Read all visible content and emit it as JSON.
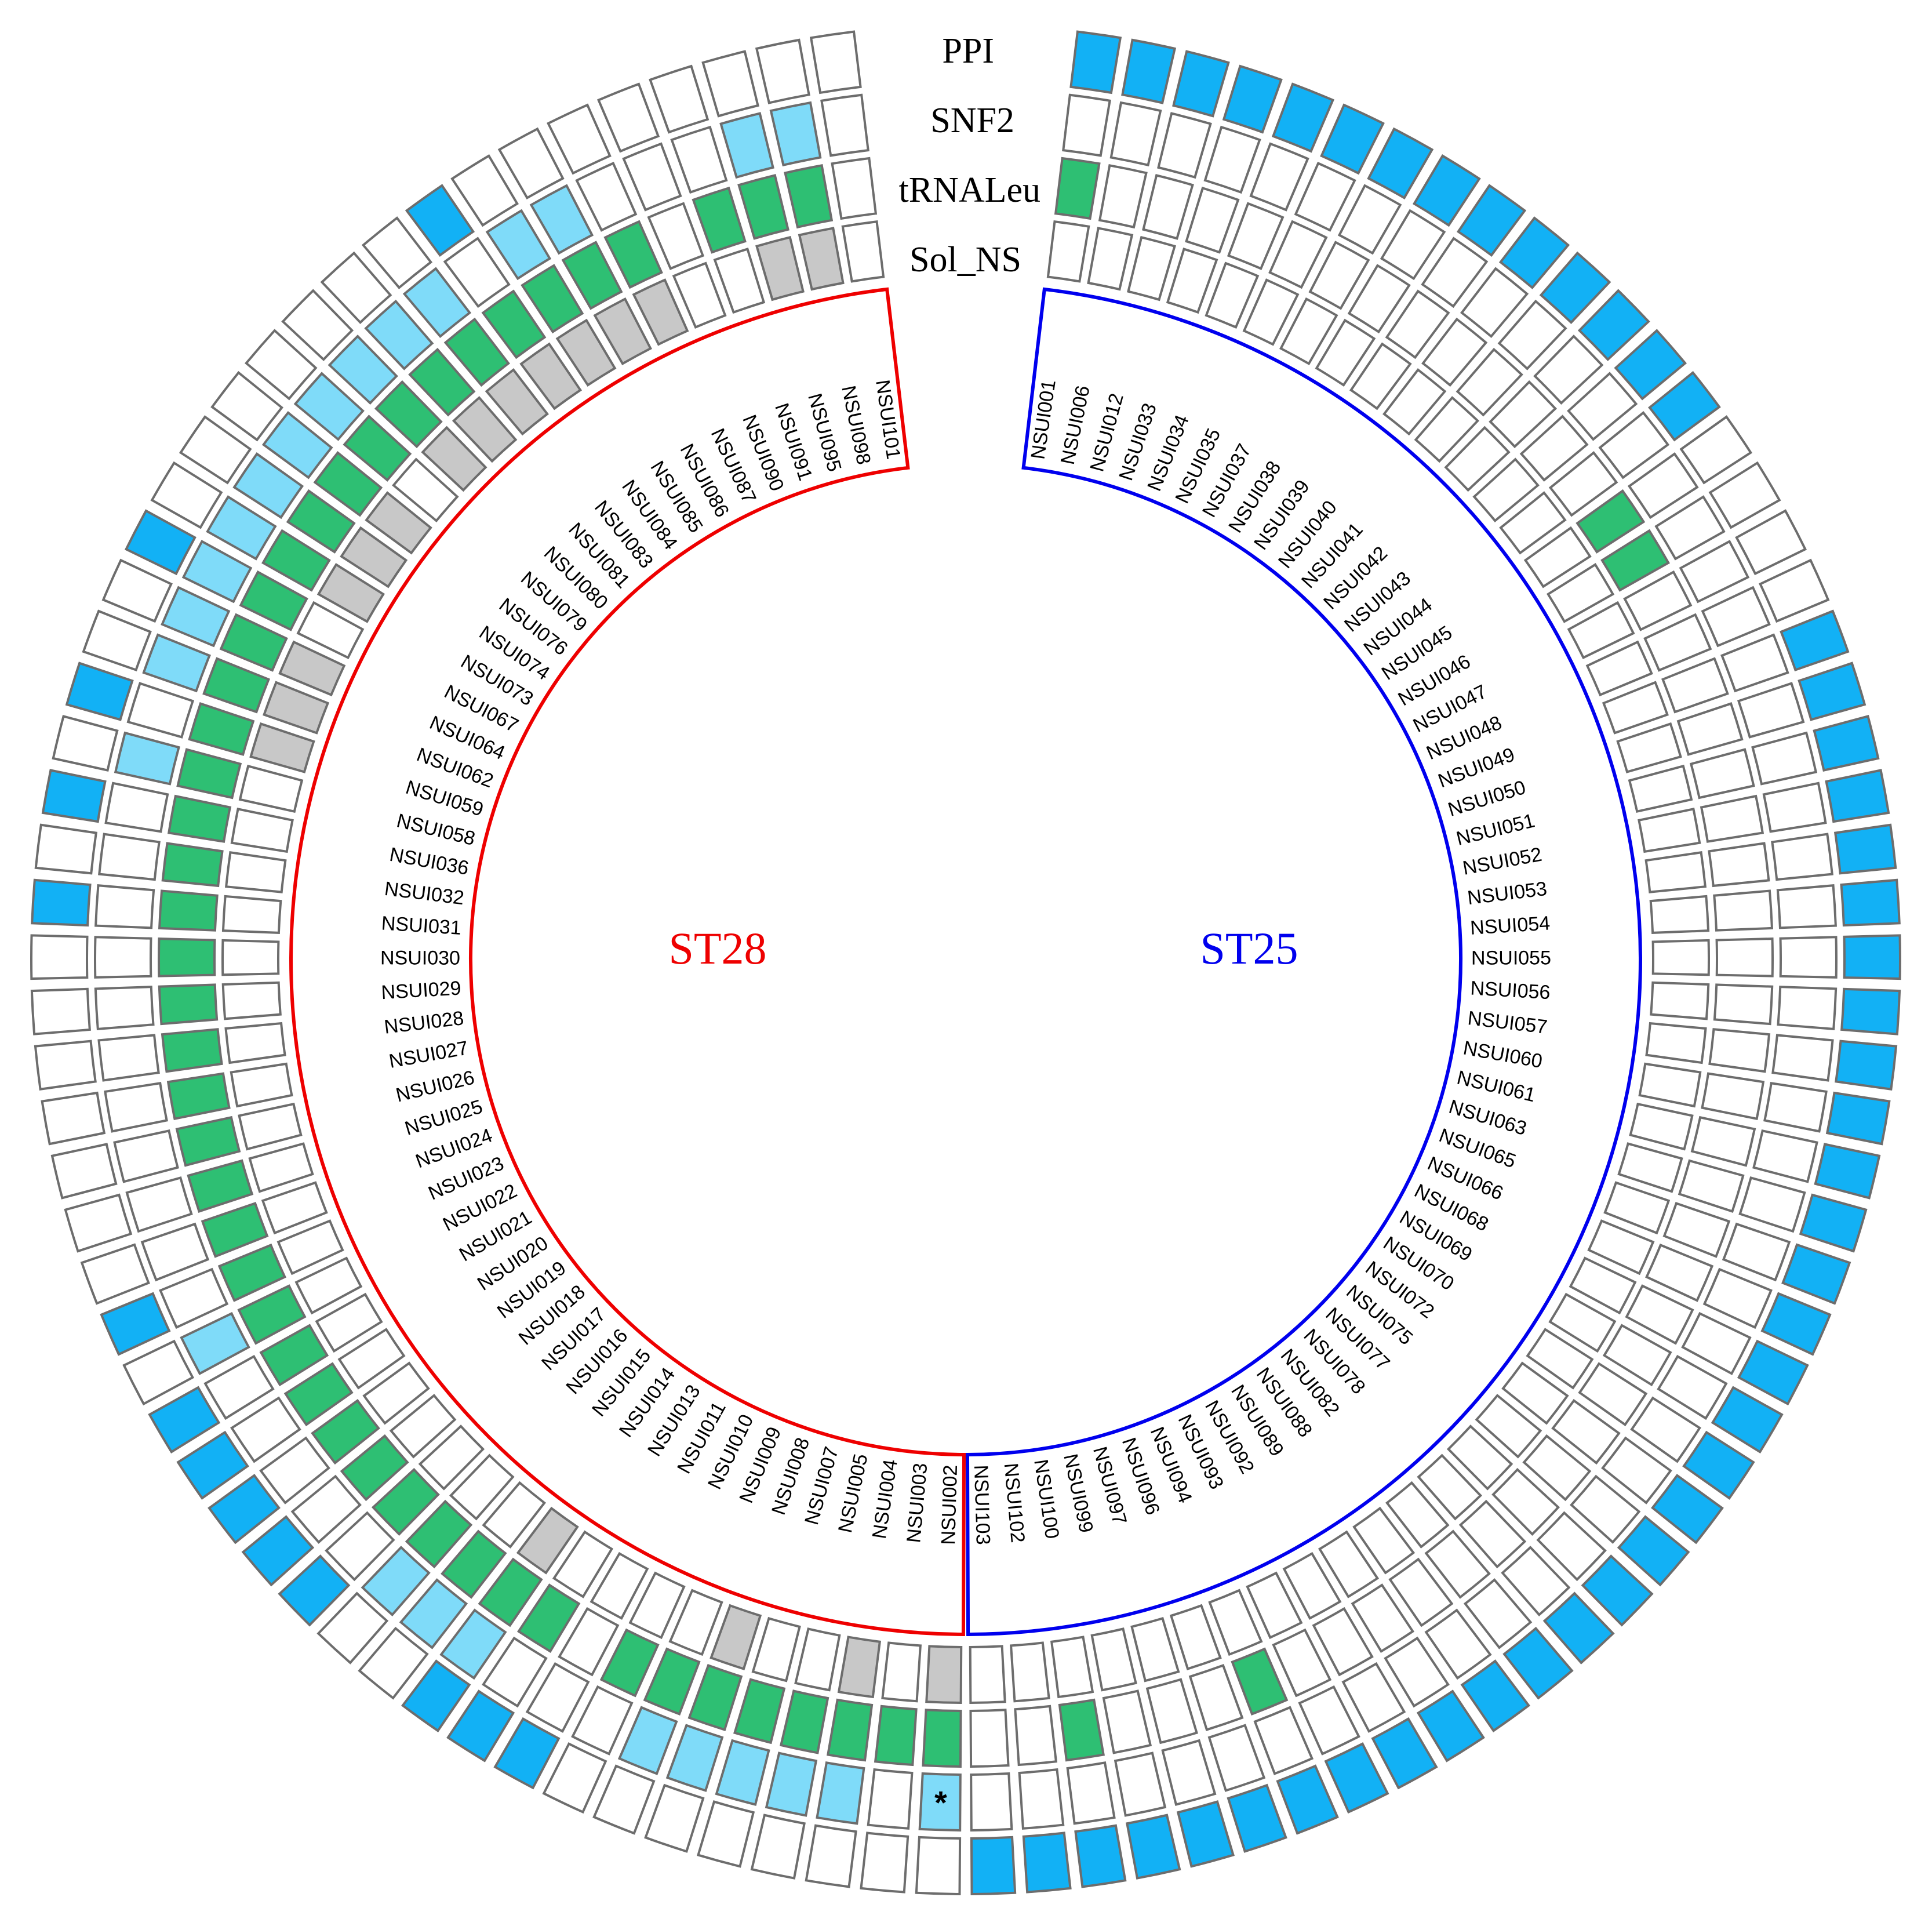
{
  "tracks": [
    "PPI",
    "SNF2",
    "tRNALeu",
    "Sol_NS"
  ],
  "groups": [
    {
      "name": "ST25",
      "color": "#0000ee"
    },
    {
      "name": "ST28",
      "color": "#ee0000"
    }
  ],
  "state_colors": {
    "0": "#ffffff",
    "1": "#12b1f5",
    "2": "#7fdbf9",
    "3": "#2ebf73",
    "4": "#c8c8c8"
  },
  "isolates": [
    {
      "id": "NSUI001",
      "group": "ST25",
      "ppi": 1,
      "snf2": 0,
      "trna": 3,
      "sol": 0
    },
    {
      "id": "NSUI006",
      "group": "ST25",
      "ppi": 1,
      "snf2": 0,
      "trna": 0,
      "sol": 0
    },
    {
      "id": "NSUI012",
      "group": "ST25",
      "ppi": 1,
      "snf2": 0,
      "trna": 0,
      "sol": 0
    },
    {
      "id": "NSUI033",
      "group": "ST25",
      "ppi": 1,
      "snf2": 0,
      "trna": 0,
      "sol": 0
    },
    {
      "id": "NSUI034",
      "group": "ST25",
      "ppi": 1,
      "snf2": 0,
      "trna": 0,
      "sol": 0
    },
    {
      "id": "NSUI035",
      "group": "ST25",
      "ppi": 1,
      "snf2": 0,
      "trna": 0,
      "sol": 0
    },
    {
      "id": "NSUI037",
      "group": "ST25",
      "ppi": 1,
      "snf2": 0,
      "trna": 0,
      "sol": 0
    },
    {
      "id": "NSUI038",
      "group": "ST25",
      "ppi": 1,
      "snf2": 0,
      "trna": 0,
      "sol": 0
    },
    {
      "id": "NSUI039",
      "group": "ST25",
      "ppi": 1,
      "snf2": 0,
      "trna": 0,
      "sol": 0
    },
    {
      "id": "NSUI040",
      "group": "ST25",
      "ppi": 1,
      "snf2": 0,
      "trna": 0,
      "sol": 0
    },
    {
      "id": "NSUI041",
      "group": "ST25",
      "ppi": 1,
      "snf2": 0,
      "trna": 0,
      "sol": 0
    },
    {
      "id": "NSUI042",
      "group": "ST25",
      "ppi": 1,
      "snf2": 0,
      "trna": 0,
      "sol": 0
    },
    {
      "id": "NSUI043",
      "group": "ST25",
      "ppi": 1,
      "snf2": 0,
      "trna": 0,
      "sol": 0
    },
    {
      "id": "NSUI044",
      "group": "ST25",
      "ppi": 1,
      "snf2": 0,
      "trna": 0,
      "sol": 0
    },
    {
      "id": "NSUI045",
      "group": "ST25",
      "ppi": 0,
      "snf2": 0,
      "trna": 3,
      "sol": 0
    },
    {
      "id": "NSUI046",
      "group": "ST25",
      "ppi": 0,
      "snf2": 0,
      "trna": 3,
      "sol": 0
    },
    {
      "id": "NSUI047",
      "group": "ST25",
      "ppi": 0,
      "snf2": 0,
      "trna": 0,
      "sol": 0
    },
    {
      "id": "NSUI048",
      "group": "ST25",
      "ppi": 0,
      "snf2": 0,
      "trna": 0,
      "sol": 0
    },
    {
      "id": "NSUI049",
      "group": "ST25",
      "ppi": 1,
      "snf2": 0,
      "trna": 0,
      "sol": 0
    },
    {
      "id": "NSUI050",
      "group": "ST25",
      "ppi": 1,
      "snf2": 0,
      "trna": 0,
      "sol": 0
    },
    {
      "id": "NSUI051",
      "group": "ST25",
      "ppi": 1,
      "snf2": 0,
      "trna": 0,
      "sol": 0
    },
    {
      "id": "NSUI052",
      "group": "ST25",
      "ppi": 1,
      "snf2": 0,
      "trna": 0,
      "sol": 0
    },
    {
      "id": "NSUI053",
      "group": "ST25",
      "ppi": 1,
      "snf2": 0,
      "trna": 0,
      "sol": 0
    },
    {
      "id": "NSUI054",
      "group": "ST25",
      "ppi": 1,
      "snf2": 0,
      "trna": 0,
      "sol": 0
    },
    {
      "id": "NSUI055",
      "group": "ST25",
      "ppi": 1,
      "snf2": 0,
      "trna": 0,
      "sol": 0
    },
    {
      "id": "NSUI056",
      "group": "ST25",
      "ppi": 1,
      "snf2": 0,
      "trna": 0,
      "sol": 0
    },
    {
      "id": "NSUI057",
      "group": "ST25",
      "ppi": 1,
      "snf2": 0,
      "trna": 0,
      "sol": 0
    },
    {
      "id": "NSUI060",
      "group": "ST25",
      "ppi": 1,
      "snf2": 0,
      "trna": 0,
      "sol": 0
    },
    {
      "id": "NSUI061",
      "group": "ST25",
      "ppi": 1,
      "snf2": 0,
      "trna": 0,
      "sol": 0
    },
    {
      "id": "NSUI063",
      "group": "ST25",
      "ppi": 1,
      "snf2": 0,
      "trna": 0,
      "sol": 0
    },
    {
      "id": "NSUI065",
      "group": "ST25",
      "ppi": 1,
      "snf2": 0,
      "trna": 0,
      "sol": 0
    },
    {
      "id": "NSUI066",
      "group": "ST25",
      "ppi": 1,
      "snf2": 0,
      "trna": 0,
      "sol": 0
    },
    {
      "id": "NSUI068",
      "group": "ST25",
      "ppi": 1,
      "snf2": 0,
      "trna": 0,
      "sol": 0
    },
    {
      "id": "NSUI069",
      "group": "ST25",
      "ppi": 1,
      "snf2": 0,
      "trna": 0,
      "sol": 0
    },
    {
      "id": "NSUI070",
      "group": "ST25",
      "ppi": 1,
      "snf2": 0,
      "trna": 0,
      "sol": 0
    },
    {
      "id": "NSUI072",
      "group": "ST25",
      "ppi": 1,
      "snf2": 0,
      "trna": 0,
      "sol": 0
    },
    {
      "id": "NSUI075",
      "group": "ST25",
      "ppi": 1,
      "snf2": 0,
      "trna": 0,
      "sol": 0
    },
    {
      "id": "NSUI077",
      "group": "ST25",
      "ppi": 1,
      "snf2": 0,
      "trna": 0,
      "sol": 0
    },
    {
      "id": "NSUI078",
      "group": "ST25",
      "ppi": 1,
      "snf2": 0,
      "trna": 0,
      "sol": 0
    },
    {
      "id": "NSUI082",
      "group": "ST25",
      "ppi": 1,
      "snf2": 0,
      "trna": 0,
      "sol": 0
    },
    {
      "id": "NSUI088",
      "group": "ST25",
      "ppi": 1,
      "snf2": 0,
      "trna": 0,
      "sol": 0
    },
    {
      "id": "NSUI089",
      "group": "ST25",
      "ppi": 1,
      "snf2": 0,
      "trna": 0,
      "sol": 0
    },
    {
      "id": "NSUI092",
      "group": "ST25",
      "ppi": 1,
      "snf2": 0,
      "trna": 0,
      "sol": 0
    },
    {
      "id": "NSUI093",
      "group": "ST25",
      "ppi": 1,
      "snf2": 0,
      "trna": 0,
      "sol": 0
    },
    {
      "id": "NSUI094",
      "group": "ST25",
      "ppi": 1,
      "snf2": 0,
      "trna": 3,
      "sol": 0
    },
    {
      "id": "NSUI096",
      "group": "ST25",
      "ppi": 1,
      "snf2": 0,
      "trna": 0,
      "sol": 0
    },
    {
      "id": "NSUI097",
      "group": "ST25",
      "ppi": 1,
      "snf2": 0,
      "trna": 0,
      "sol": 0
    },
    {
      "id": "NSUI099",
      "group": "ST25",
      "ppi": 1,
      "snf2": 0,
      "trna": 0,
      "sol": 0
    },
    {
      "id": "NSUI100",
      "group": "ST25",
      "ppi": 1,
      "snf2": 0,
      "trna": 3,
      "sol": 0
    },
    {
      "id": "NSUI102",
      "group": "ST25",
      "ppi": 1,
      "snf2": 0,
      "trna": 0,
      "sol": 0
    },
    {
      "id": "NSUI103",
      "group": "ST25",
      "ppi": 1,
      "snf2": 0,
      "trna": 0,
      "sol": 0
    },
    {
      "id": "NSUI002",
      "group": "ST28",
      "ppi": 0,
      "snf2": 2,
      "trna": 3,
      "sol": 4,
      "mark": "*"
    },
    {
      "id": "NSUI003",
      "group": "ST28",
      "ppi": 0,
      "snf2": 0,
      "trna": 3,
      "sol": 0
    },
    {
      "id": "NSUI004",
      "group": "ST28",
      "ppi": 0,
      "snf2": 2,
      "trna": 3,
      "sol": 4
    },
    {
      "id": "NSUI005",
      "group": "ST28",
      "ppi": 0,
      "snf2": 2,
      "trna": 3,
      "sol": 0
    },
    {
      "id": "NSUI007",
      "group": "ST28",
      "ppi": 0,
      "snf2": 2,
      "trna": 3,
      "sol": 0
    },
    {
      "id": "NSUI008",
      "group": "ST28",
      "ppi": 0,
      "snf2": 2,
      "trna": 3,
      "sol": 4
    },
    {
      "id": "NSUI009",
      "group": "ST28",
      "ppi": 0,
      "snf2": 2,
      "trna": 3,
      "sol": 0
    },
    {
      "id": "NSUI010",
      "group": "ST28",
      "ppi": 0,
      "snf2": 0,
      "trna": 3,
      "sol": 0
    },
    {
      "id": "NSUI011",
      "group": "ST28",
      "ppi": 1,
      "snf2": 0,
      "trna": 0,
      "sol": 0
    },
    {
      "id": "NSUI013",
      "group": "ST28",
      "ppi": 1,
      "snf2": 0,
      "trna": 3,
      "sol": 0
    },
    {
      "id": "NSUI014",
      "group": "ST28",
      "ppi": 1,
      "snf2": 2,
      "trna": 3,
      "sol": 4
    },
    {
      "id": "NSUI015",
      "group": "ST28",
      "ppi": 0,
      "snf2": 2,
      "trna": 3,
      "sol": 0
    },
    {
      "id": "NSUI016",
      "group": "ST28",
      "ppi": 0,
      "snf2": 2,
      "trna": 3,
      "sol": 0
    },
    {
      "id": "NSUI017",
      "group": "ST28",
      "ppi": 1,
      "snf2": 0,
      "trna": 3,
      "sol": 0
    },
    {
      "id": "NSUI018",
      "group": "ST28",
      "ppi": 1,
      "snf2": 0,
      "trna": 3,
      "sol": 0
    },
    {
      "id": "NSUI019",
      "group": "ST28",
      "ppi": 1,
      "snf2": 0,
      "trna": 3,
      "sol": 0
    },
    {
      "id": "NSUI020",
      "group": "ST28",
      "ppi": 1,
      "snf2": 0,
      "trna": 3,
      "sol": 0
    },
    {
      "id": "NSUI021",
      "group": "ST28",
      "ppi": 1,
      "snf2": 0,
      "trna": 3,
      "sol": 0
    },
    {
      "id": "NSUI022",
      "group": "ST28",
      "ppi": 0,
      "snf2": 2,
      "trna": 3,
      "sol": 0
    },
    {
      "id": "NSUI023",
      "group": "ST28",
      "ppi": 1,
      "snf2": 0,
      "trna": 3,
      "sol": 0
    },
    {
      "id": "NSUI024",
      "group": "ST28",
      "ppi": 0,
      "snf2": 0,
      "trna": 3,
      "sol": 0
    },
    {
      "id": "NSUI025",
      "group": "ST28",
      "ppi": 0,
      "snf2": 0,
      "trna": 3,
      "sol": 0
    },
    {
      "id": "NSUI026",
      "group": "ST28",
      "ppi": 0,
      "snf2": 0,
      "trna": 3,
      "sol": 0
    },
    {
      "id": "NSUI027",
      "group": "ST28",
      "ppi": 0,
      "snf2": 0,
      "trna": 3,
      "sol": 0
    },
    {
      "id": "NSUI028",
      "group": "ST28",
      "ppi": 0,
      "snf2": 0,
      "trna": 3,
      "sol": 0
    },
    {
      "id": "NSUI029",
      "group": "ST28",
      "ppi": 0,
      "snf2": 0,
      "trna": 3,
      "sol": 0
    },
    {
      "id": "NSUI030",
      "group": "ST28",
      "ppi": 0,
      "snf2": 0,
      "trna": 3,
      "sol": 0
    },
    {
      "id": "NSUI031",
      "group": "ST28",
      "ppi": 1,
      "snf2": 0,
      "trna": 3,
      "sol": 0
    },
    {
      "id": "NSUI032",
      "group": "ST28",
      "ppi": 0,
      "snf2": 0,
      "trna": 3,
      "sol": 0
    },
    {
      "id": "NSUI036",
      "group": "ST28",
      "ppi": 1,
      "snf2": 0,
      "trna": 3,
      "sol": 0
    },
    {
      "id": "NSUI058",
      "group": "ST28",
      "ppi": 0,
      "snf2": 2,
      "trna": 3,
      "sol": 0
    },
    {
      "id": "NSUI059",
      "group": "ST28",
      "ppi": 1,
      "snf2": 0,
      "trna": 3,
      "sol": 4
    },
    {
      "id": "NSUI062",
      "group": "ST28",
      "ppi": 0,
      "snf2": 2,
      "trna": 3,
      "sol": 4
    },
    {
      "id": "NSUI064",
      "group": "ST28",
      "ppi": 0,
      "snf2": 2,
      "trna": 3,
      "sol": 4
    },
    {
      "id": "NSUI067",
      "group": "ST28",
      "ppi": 1,
      "snf2": 2,
      "trna": 3,
      "sol": 0
    },
    {
      "id": "NSUI073",
      "group": "ST28",
      "ppi": 0,
      "snf2": 2,
      "trna": 3,
      "sol": 4
    },
    {
      "id": "NSUI074",
      "group": "ST28",
      "ppi": 0,
      "snf2": 2,
      "trna": 3,
      "sol": 4
    },
    {
      "id": "NSUI076",
      "group": "ST28",
      "ppi": 0,
      "snf2": 2,
      "trna": 3,
      "sol": 4
    },
    {
      "id": "NSUI079",
      "group": "ST28",
      "ppi": 0,
      "snf2": 2,
      "trna": 3,
      "sol": 0
    },
    {
      "id": "NSUI080",
      "group": "ST28",
      "ppi": 0,
      "snf2": 2,
      "trna": 3,
      "sol": 4
    },
    {
      "id": "NSUI081",
      "group": "ST28",
      "ppi": 0,
      "snf2": 2,
      "trna": 3,
      "sol": 4
    },
    {
      "id": "NSUI083",
      "group": "ST28",
      "ppi": 0,
      "snf2": 2,
      "trna": 3,
      "sol": 4
    },
    {
      "id": "NSUI084",
      "group": "ST28",
      "ppi": 1,
      "snf2": 0,
      "trna": 3,
      "sol": 4
    },
    {
      "id": "NSUI085",
      "group": "ST28",
      "ppi": 0,
      "snf2": 2,
      "trna": 3,
      "sol": 4
    },
    {
      "id": "NSUI086",
      "group": "ST28",
      "ppi": 0,
      "snf2": 2,
      "trna": 3,
      "sol": 4
    },
    {
      "id": "NSUI087",
      "group": "ST28",
      "ppi": 0,
      "snf2": 0,
      "trna": 3,
      "sol": 4
    },
    {
      "id": "NSUI090",
      "group": "ST28",
      "ppi": 0,
      "snf2": 0,
      "trna": 0,
      "sol": 0
    },
    {
      "id": "NSUI091",
      "group": "ST28",
      "ppi": 0,
      "snf2": 0,
      "trna": 3,
      "sol": 0
    },
    {
      "id": "NSUI095",
      "group": "ST28",
      "ppi": 0,
      "snf2": 2,
      "trna": 3,
      "sol": 4
    },
    {
      "id": "NSUI098",
      "group": "ST28",
      "ppi": 0,
      "snf2": 2,
      "trna": 3,
      "sol": 4
    },
    {
      "id": "NSUI101",
      "group": "ST28",
      "ppi": 0,
      "snf2": 0,
      "trna": 0,
      "sol": 0
    }
  ]
}
